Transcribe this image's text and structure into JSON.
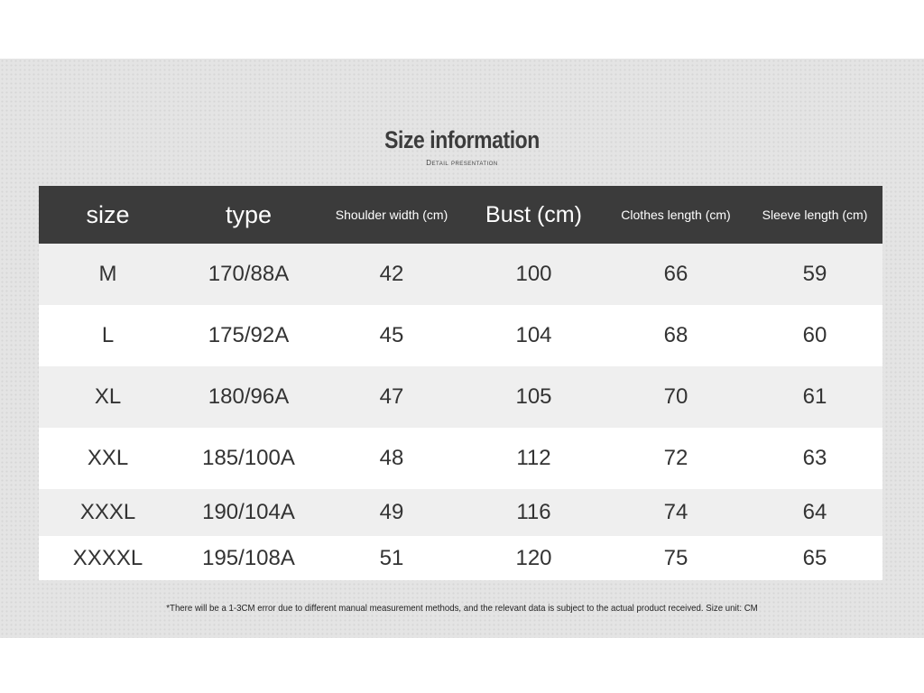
{
  "header": {
    "title": "Size information",
    "subtitle": "Detail presentation"
  },
  "table": {
    "columns": [
      "size",
      "type",
      "Shoulder width (cm)",
      "Bust (cm)",
      "Clothes length (cm)",
      "Sleeve length (cm)"
    ],
    "rows": [
      [
        "M",
        "170/88A",
        42,
        100,
        66,
        59
      ],
      [
        "L",
        "175/92A",
        45,
        104,
        68,
        60
      ],
      [
        "XL",
        "180/96A",
        47,
        105,
        70,
        61
      ],
      [
        "XXL",
        "185/100A",
        48,
        112,
        72,
        63
      ],
      [
        "XXXL",
        "190/104A",
        49,
        116,
        74,
        64
      ],
      [
        "XXXXL",
        "195/108A",
        51,
        120,
        75,
        65
      ]
    ]
  },
  "footnote": "*There will be a 1-3CM error due to different manual measurement methods, and the relevant data is subject to the actual product received. Size unit: CM"
}
